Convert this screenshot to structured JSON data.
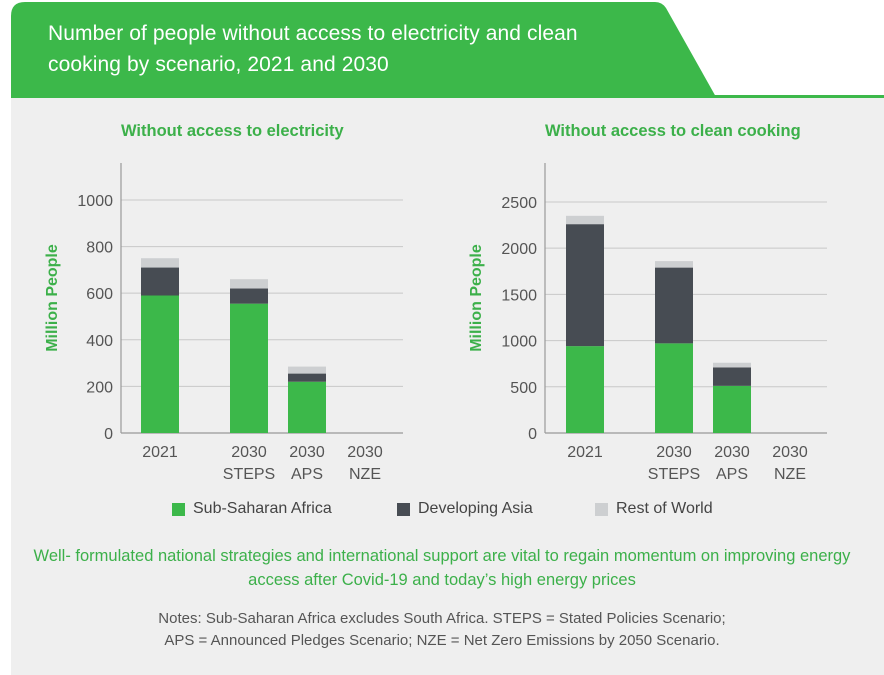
{
  "title": "Number of people without access to electricity and clean cooking by scenario, 2021 and 2030",
  "colors": {
    "ssa": "#3cb84a",
    "asia": "#474c53",
    "row": "#cdcfd1",
    "accent": "#3cb04a"
  },
  "legend": [
    {
      "label": "Sub-Saharan Africa",
      "color": "#3cb84a"
    },
    {
      "label": "Developing Asia",
      "color": "#474c53"
    },
    {
      "label": "Rest of World",
      "color": "#cdcfd1"
    }
  ],
  "message": "Well- formulated national strategies and international support are vital to regain momentum on improving energy access after Covid-19 and today’s high energy prices",
  "notes_line1": "Notes: Sub-Saharan Africa excludes South Africa. STEPS = Stated Policies Scenario;",
  "notes_line2": "APS = Announced Pledges Scenario; NZE = Net Zero Emissions by 2050 Scenario.",
  "chart_data": [
    {
      "type": "bar",
      "stacked": true,
      "title": "Without access to electricity",
      "ylabel": "Million People",
      "ylim": [
        0,
        1150
      ],
      "yticks": [
        0,
        200,
        400,
        600,
        800,
        1000
      ],
      "categories": [
        [
          "2021"
        ],
        [
          "2030",
          "STEPS"
        ],
        [
          "2030",
          "APS"
        ],
        [
          "2030",
          "NZE"
        ]
      ],
      "series": [
        {
          "name": "Sub-Saharan Africa",
          "values": [
            590,
            555,
            220,
            0
          ]
        },
        {
          "name": "Developing Asia",
          "values": [
            120,
            65,
            35,
            0
          ]
        },
        {
          "name": "Rest of World",
          "values": [
            40,
            40,
            30,
            0
          ]
        }
      ],
      "grid": true
    },
    {
      "type": "bar",
      "stacked": true,
      "title": "Without access to clean cooking",
      "ylabel": "Million People",
      "ylim": [
        0,
        2900
      ],
      "yticks": [
        0,
        500,
        1000,
        1500,
        2000,
        2500
      ],
      "categories": [
        [
          "2021"
        ],
        [
          "2030",
          "STEPS"
        ],
        [
          "2030",
          "APS"
        ],
        [
          "2030",
          "NZE"
        ]
      ],
      "series": [
        {
          "name": "Sub-Saharan Africa",
          "values": [
            940,
            970,
            510,
            0
          ]
        },
        {
          "name": "Developing Asia",
          "values": [
            1320,
            820,
            200,
            0
          ]
        },
        {
          "name": "Rest of World",
          "values": [
            90,
            70,
            50,
            0
          ]
        }
      ],
      "grid": true
    }
  ]
}
